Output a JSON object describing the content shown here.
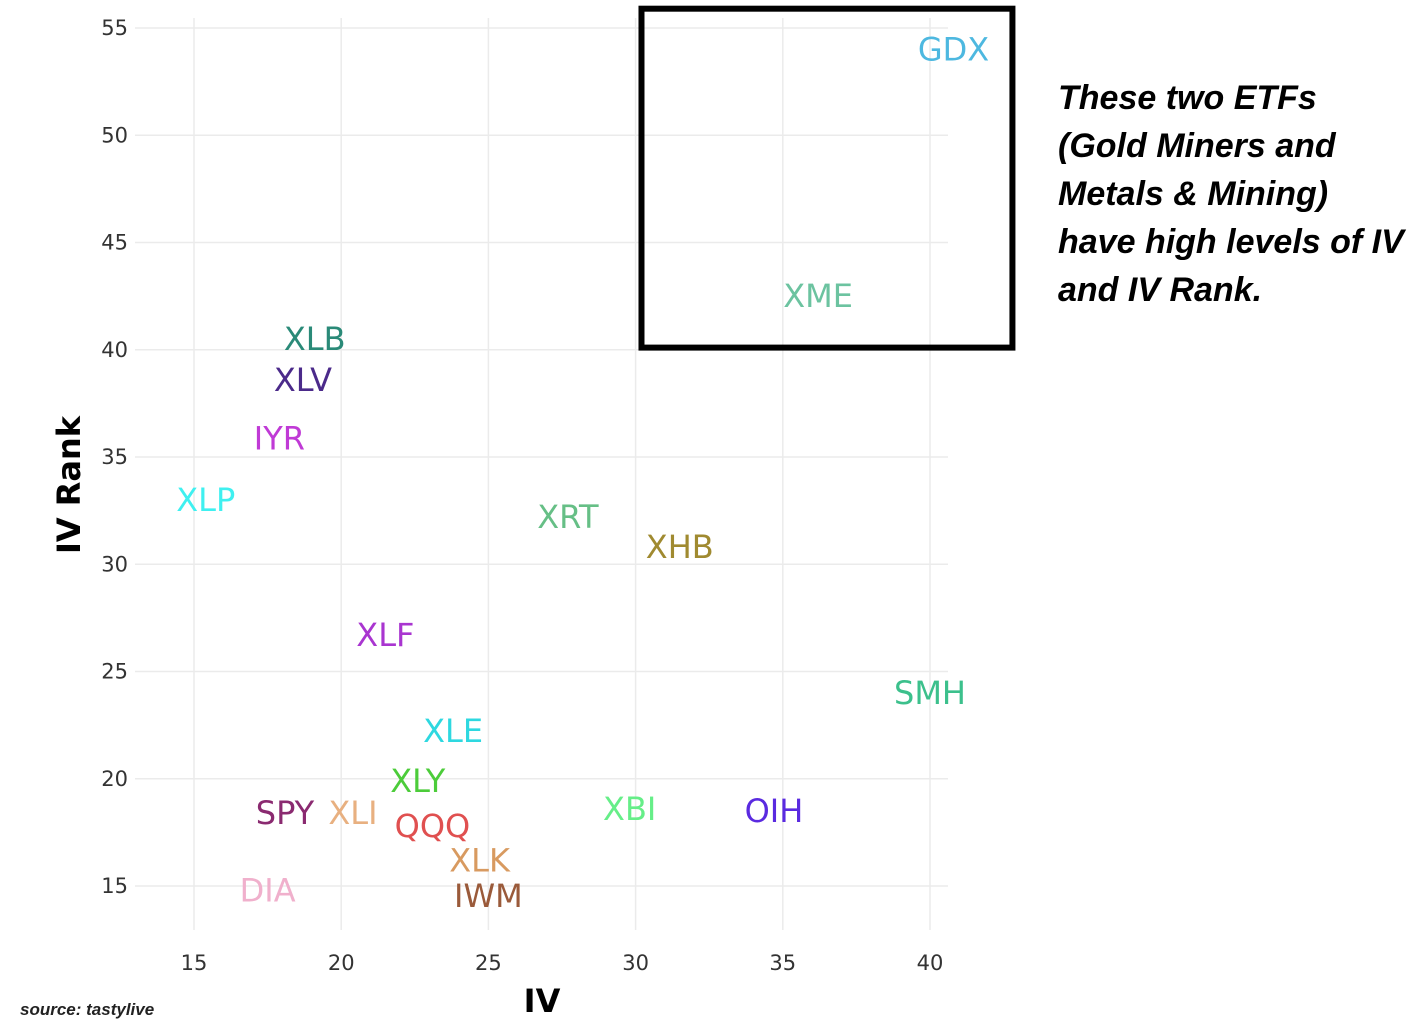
{
  "chart_data": {
    "type": "scatter",
    "xlabel": "IV",
    "ylabel": "IV Rank",
    "xlim": [
      13.2,
      40.6
    ],
    "ylim": [
      12.5,
      55.5
    ],
    "xticks": [
      15,
      20,
      25,
      30,
      35,
      40
    ],
    "yticks": [
      15,
      20,
      25,
      30,
      35,
      40,
      45,
      50,
      55
    ],
    "grid": true,
    "points": [
      {
        "label": "GDX",
        "x": 40.8,
        "y": 54.0,
        "color": "#4db8e0"
      },
      {
        "label": "XME",
        "x": 36.2,
        "y": 42.5,
        "color": "#6cc3a0"
      },
      {
        "label": "XLB",
        "x": 19.1,
        "y": 39.1,
        "color": "#2a8a78"
      },
      {
        "label": "XLV",
        "x": 18.7,
        "y": 38.6,
        "color": "#4b2a8a"
      },
      {
        "label": "IYR",
        "x": 17.9,
        "y": 37.5,
        "color": "#c03ad6"
      },
      {
        "label": "XLP",
        "x": 15.4,
        "y": 33.0,
        "color": "#3ff0f0"
      },
      {
        "label": "XRT",
        "x": 27.7,
        "y": 32.2,
        "color": "#66bf86"
      },
      {
        "label": "XHB",
        "x": 31.5,
        "y": 30.8,
        "color": "#a08a30"
      },
      {
        "label": "XLF",
        "x": 21.5,
        "y": 26.7,
        "color": "#a935d0"
      },
      {
        "label": "SMH",
        "x": 40.0,
        "y": 24.0,
        "color": "#3cc08c"
      },
      {
        "label": "XLE",
        "x": 23.8,
        "y": 20.6,
        "color": "#2ed8e0"
      },
      {
        "label": "XLY",
        "x": 22.6,
        "y": 19.9,
        "color": "#4ccc3a"
      },
      {
        "label": "QQQ",
        "x": 23.1,
        "y": 19.2,
        "color": "#e05050"
      },
      {
        "label": "XLI",
        "x": 20.4,
        "y": 19.1,
        "color": "#e8b080"
      },
      {
        "label": "SPY",
        "x": 18.6,
        "y": 18.4,
        "color": "#8a2a70"
      },
      {
        "label": "XBI",
        "x": 29.8,
        "y": 18.6,
        "color": "#66ee88"
      },
      {
        "label": "OIH",
        "x": 34.7,
        "y": 18.5,
        "color": "#5a2ae0"
      },
      {
        "label": "XLK",
        "x": 24.7,
        "y": 16.2,
        "color": "#d89a60"
      },
      {
        "label": "IWM",
        "x": 25.0,
        "y": 15.7,
        "color": "#9a5a3a"
      },
      {
        "label": "DIA",
        "x": 17.5,
        "y": 14.8,
        "color": "#f0b0cc"
      }
    ],
    "annotation": "These two ETFs (Gold Miners and Metals & Mining) have high levels of IV and IV Rank.",
    "highlight_box": {
      "x_range": [
        30.2,
        42.8
      ],
      "y_range": [
        40.1,
        55.9
      ]
    },
    "source": "source: tastylive"
  }
}
